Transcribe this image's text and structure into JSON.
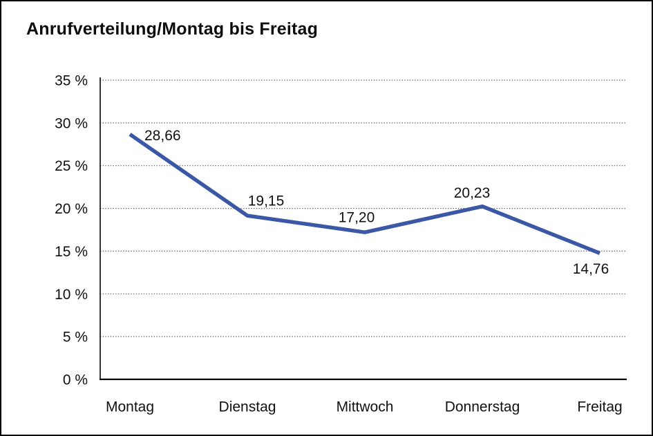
{
  "page": {
    "background_color": "#ffffff",
    "frame_border_color": "#000000"
  },
  "chart_data": {
    "type": "line",
    "title": "Anrufverteilung/Montag bis Freitag",
    "categories": [
      "Montag",
      "Dienstag",
      "Mittwoch",
      "Donnerstag",
      "Freitag"
    ],
    "series": [
      {
        "name": "Anrufverteilung",
        "values": [
          28.66,
          19.15,
          17.2,
          20.23,
          14.76
        ]
      }
    ],
    "value_labels": [
      "28,66",
      "19,15",
      "17,20",
      "20,23",
      "14,76"
    ],
    "xlabel": "",
    "ylabel": "",
    "ylim": [
      0,
      35
    ],
    "y_tick_step": 5,
    "y_tick_labels": [
      "0 %",
      "5 %",
      "10 %",
      "15 %",
      "20 %",
      "25 %",
      "30 %",
      "35 %"
    ],
    "grid": "horizontal-dotted",
    "legend_position": "none",
    "line_color": "#3A58A5",
    "grid_color": "#555555",
    "axis_color": "#000000",
    "text_color": "#111111"
  }
}
